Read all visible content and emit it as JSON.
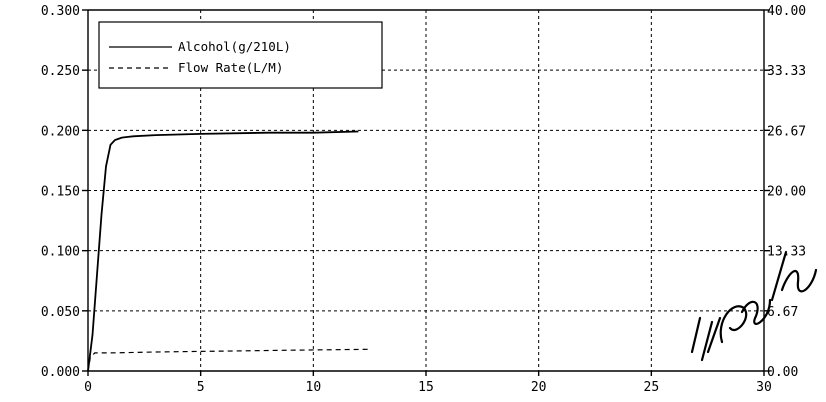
{
  "chart_data": {
    "type": "line",
    "title": "",
    "xlabel": "",
    "ylabel": "",
    "xlim": [
      0,
      30
    ],
    "ylim": [
      0,
      0.3
    ],
    "y2lim": [
      0,
      40
    ],
    "grid": true,
    "legend_position": "top-left",
    "x_ticks": [
      "0",
      "5",
      "10",
      "15",
      "20",
      "25",
      "30"
    ],
    "y_ticks": [
      "0.000",
      "0.050",
      "0.100",
      "0.150",
      "0.200",
      "0.250",
      "0.300"
    ],
    "y2_ticks": [
      "0.00",
      "6.67",
      "13.33",
      "20.00",
      "26.67",
      "33.33",
      "40.00"
    ],
    "series": [
      {
        "name": "Alcohol(g/210L)",
        "axis": "left",
        "style": "solid",
        "x": [
          0,
          0.2,
          0.4,
          0.6,
          0.8,
          1.0,
          1.2,
          1.5,
          2.0,
          3.0,
          5.0,
          8.0,
          10.0,
          12.0
        ],
        "y": [
          0,
          0.03,
          0.08,
          0.13,
          0.17,
          0.188,
          0.192,
          0.194,
          0.195,
          0.196,
          0.197,
          0.198,
          0.198,
          0.199
        ]
      },
      {
        "name": "Flow Rate(L/M)",
        "axis": "right",
        "style": "dashed",
        "x": [
          0,
          0.1,
          0.3,
          1.0,
          3.0,
          6.0,
          9.0,
          12.5
        ],
        "y": [
          0,
          1.5,
          2.0,
          2.0,
          2.1,
          2.2,
          2.3,
          2.4
        ]
      }
    ]
  },
  "annotation": {
    "signature": "11/18/2008"
  }
}
